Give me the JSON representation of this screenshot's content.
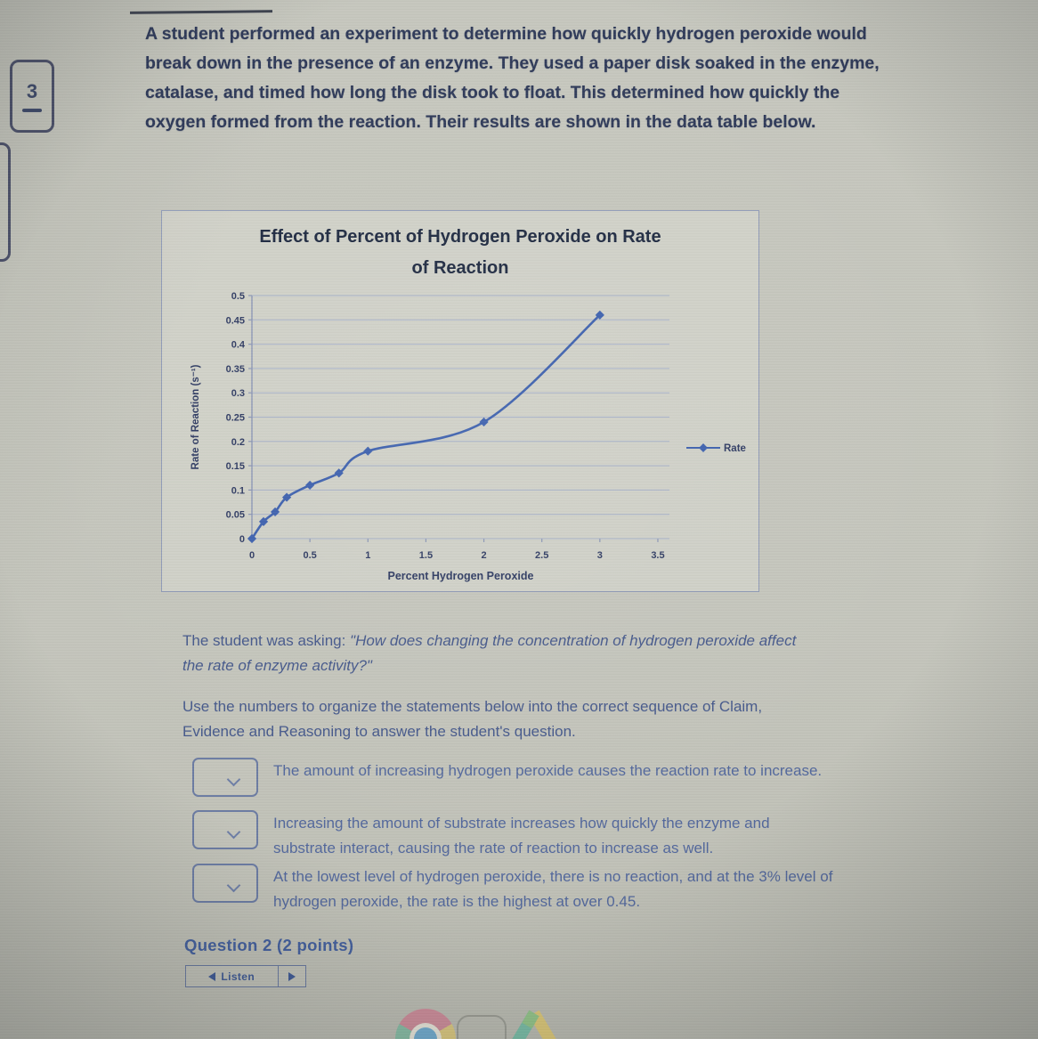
{
  "nav": {
    "badge_number": "3"
  },
  "intro_text": "A student performed an experiment to determine how quickly hydrogen peroxide would break down in the presence of an enzyme. They used a paper disk soaked in the enzyme, catalase, and timed how long the disk took to float. This determined how quickly the oxygen formed from the reaction. Their results are shown in the data table below.",
  "question": {
    "prefix": "The student was asking: ",
    "quote": "\"How does changing the concentration of hydrogen peroxide affect the rate of enzyme activity?\"",
    "instructions": "Use the numbers to organize the statements below into the correct sequence of Claim, Evidence and Reasoning to answer the student's question."
  },
  "statements": [
    {
      "dropdown_value": "",
      "text": "The amount of increasing hydrogen peroxide causes the reaction rate to increase."
    },
    {
      "dropdown_value": "",
      "text": "Increasing the amount of substrate increases how quickly the enzyme and substrate interact, causing the rate of reaction to increase as well."
    },
    {
      "dropdown_value": "",
      "text": "At the lowest level of hydrogen peroxide, there is no reaction, and at the 3% level of hydrogen peroxide, the rate is the highest at over 0.45."
    }
  ],
  "question2": {
    "heading": "Question 2 (2 points)",
    "listen_label": "Listen"
  },
  "chart_data": {
    "type": "line",
    "title": "Effect of Percent of Hydrogen Peroxide on Rate of Reaction",
    "title_lines": [
      "Effect of Percent of Hydrogen Peroxide on Rate",
      "of Reaction"
    ],
    "xlabel": "Percent Hydrogen Peroxide",
    "ylabel": "Rate of Reaction (s⁻¹)",
    "xlim": [
      0,
      3.6
    ],
    "ylim": [
      0,
      0.5
    ],
    "x_ticks": [
      "0",
      "0.5",
      "1",
      "1.5",
      "2",
      "2.5",
      "3",
      "3.5"
    ],
    "y_ticks": [
      "0",
      "0.05",
      "0.1",
      "0.15",
      "0.2",
      "0.25",
      "0.3",
      "0.35",
      "0.4",
      "0.45",
      "0.5"
    ],
    "grid": true,
    "legend_position": "right-outside",
    "series": [
      {
        "name": "Rate",
        "marker": "diamond",
        "x": [
          0,
          0.1,
          0.2,
          0.3,
          0.5,
          0.75,
          1,
          2,
          3
        ],
        "y": [
          0,
          0.035,
          0.055,
          0.085,
          0.11,
          0.135,
          0.18,
          0.24,
          0.46
        ]
      }
    ],
    "colors": {
      "line": "#3f62ae",
      "grid": "#a8b2c9",
      "axis": "#8b96b5",
      "tick_text": "#303c63"
    }
  }
}
